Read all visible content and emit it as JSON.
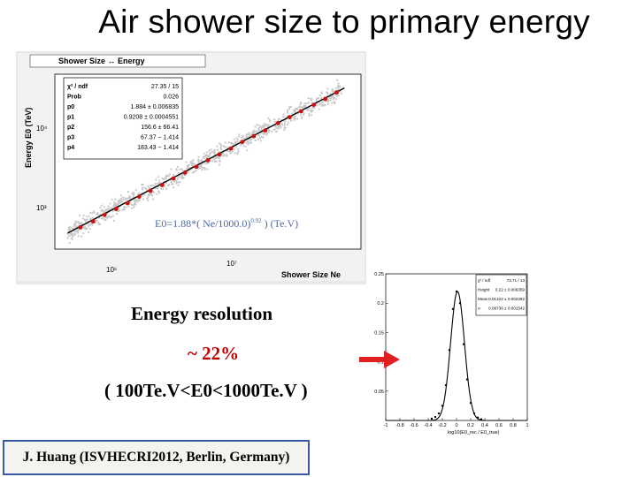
{
  "slide": {
    "title": "Air shower size  to primary energy",
    "energy_resolution_label": "Energy   resolution",
    "energy_resolution_value": "~ 22%",
    "energy_range": "( 100Te.V<E0<1000Te.V )",
    "credit": "J. Huang  (ISVHECRI2012,  Berlin,  Germany)"
  },
  "colors": {
    "resolution_value": "#c00000",
    "arrow": "#e02020",
    "credit_border": "#3a5aa8",
    "fit_points": "#cc1010",
    "scatter": "#c8c8c8"
  },
  "chart_data": [
    {
      "type": "scatter",
      "title": "Shower Size  ↔ Energy",
      "xlabel": "Shower Size Ne",
      "ylabel": "Energy E0 (TeV)",
      "xscale": "log",
      "yscale": "log",
      "x_tick_labels": [
        "10⁶",
        "10⁷"
      ],
      "y_tick_labels": [
        "10²",
        "10³",
        "10⁴"
      ],
      "fit_formula": "E0=1.88*( Ne/1000.0)^0.92 )    (Te.V)",
      "fit_formula_base": "E0=1.88*( Ne/1000.0)",
      "fit_formula_exp": "0.92",
      "fit_formula_tail": " )    (Te.V)",
      "stats": [
        {
          "name": "χ² / ndf",
          "value": "27.35 / 15"
        },
        {
          "name": "Prob",
          "value": "0.026"
        },
        {
          "name": "p0",
          "value": "1.884 ± 0.006835"
        },
        {
          "name": "p1",
          "value": "0.9208 ± 0.0004551"
        },
        {
          "name": "p2",
          "value": "156.6 ± 66.41"
        },
        {
          "name": "p3",
          "value": "67.37 − 1.414"
        },
        {
          "name": "p4",
          "value": "183.43 − 1.414"
        }
      ],
      "fit_points": {
        "log10_x": [
          5.55,
          5.65,
          5.74,
          5.83,
          5.92,
          6.01,
          6.1,
          6.19,
          6.28,
          6.37,
          6.46,
          6.55,
          6.64,
          6.73,
          6.82,
          6.91,
          7.0,
          7.1,
          7.19,
          7.28,
          7.38,
          7.47,
          7.56
        ],
        "log10_y": [
          2.25,
          2.33,
          2.42,
          2.5,
          2.58,
          2.67,
          2.75,
          2.83,
          2.92,
          3.0,
          3.08,
          3.17,
          3.25,
          3.33,
          3.42,
          3.5,
          3.58,
          3.68,
          3.76,
          3.84,
          3.93,
          4.01,
          4.1
        ]
      },
      "fit_line": {
        "log10_x": [
          5.45,
          7.62
        ],
        "log10_y": [
          2.17,
          4.16
        ]
      },
      "legend": "top-left"
    },
    {
      "type": "line",
      "xlabel": "log10(E0_rec / E0_true)",
      "x_range": [
        -1,
        1
      ],
      "y_range": [
        0,
        0.25
      ],
      "x_tick_labels": [
        "-1",
        "-0.8",
        "-0.6",
        "-0.4",
        "-0.2",
        "0",
        "0.2",
        "0.4",
        "0.6",
        "0.8",
        "1"
      ],
      "y_tick_labels": [
        "0.05",
        "0.1",
        "0.15",
        "0.2",
        "0.25"
      ],
      "stats": [
        {
          "name": "χ² / ndf",
          "value": "73.71 / 13"
        },
        {
          "name": "Height",
          "value": "0.22 ± 0.006359"
        },
        {
          "name": "Mean",
          "value": "0.01422 ± 0.002292"
        },
        {
          "name": "σ",
          "value": "0.09736 ± 0.001542"
        }
      ],
      "gaussian": {
        "height": 0.22,
        "mean": 0.01422,
        "sigma": 0.09736
      },
      "points": {
        "x": [
          -0.35,
          -0.3,
          -0.25,
          -0.2,
          -0.15,
          -0.1,
          -0.05,
          0.0,
          0.05,
          0.1,
          0.15,
          0.2,
          0.25,
          0.3,
          0.35
        ],
        "y": [
          0.003,
          0.006,
          0.012,
          0.025,
          0.06,
          0.12,
          0.19,
          0.22,
          0.2,
          0.13,
          0.07,
          0.03,
          0.012,
          0.005,
          0.002
        ]
      }
    }
  ]
}
